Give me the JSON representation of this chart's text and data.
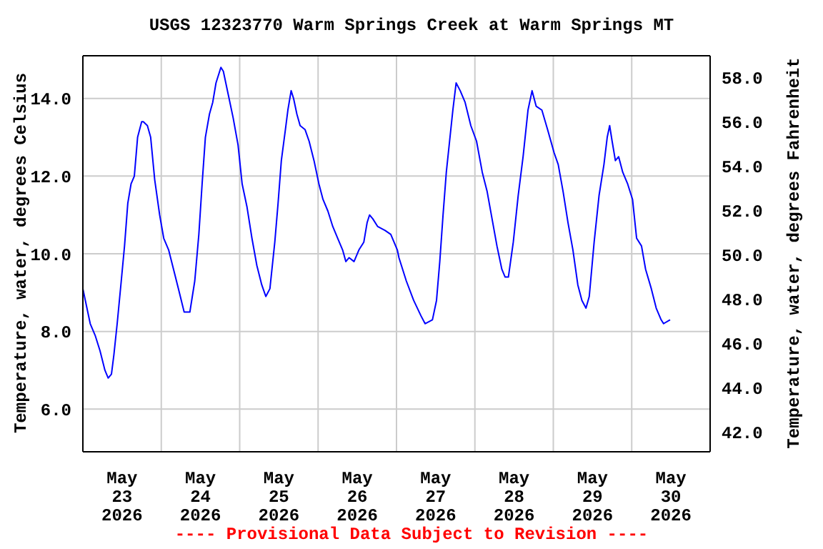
{
  "chart_data": {
    "type": "line",
    "title": "USGS 12323770 Warm Springs Creek at Warm Springs MT",
    "ylabel": "Temperature, water, degrees Celsius",
    "y2label": "Temperature, water, degrees Fahrenheit",
    "annotations": [
      "---- Provisional Data Subject to Revision ----"
    ],
    "x": [
      "2026-05-23T00:00",
      "2026-05-23T00:45",
      "2026-05-23T02:15",
      "2026-05-23T03:45",
      "2026-05-23T05:15",
      "2026-05-23T06:45",
      "2026-05-23T07:45",
      "2026-05-23T08:45",
      "2026-05-23T09:30",
      "2026-05-23T10:30",
      "2026-05-23T11:45",
      "2026-05-23T12:45",
      "2026-05-23T13:45",
      "2026-05-23T14:45",
      "2026-05-23T15:45",
      "2026-05-23T16:45",
      "2026-05-23T18:00",
      "2026-05-23T18:30",
      "2026-05-23T19:45",
      "2026-05-23T20:45",
      "2026-05-23T22:00",
      "2026-05-23T23:30",
      "2026-05-24T00:45",
      "2026-05-24T02:15",
      "2026-05-24T03:45",
      "2026-05-24T05:15",
      "2026-05-24T07:00",
      "2026-05-24T08:45",
      "2026-05-24T10:15",
      "2026-05-24T11:30",
      "2026-05-24T12:30",
      "2026-05-24T13:30",
      "2026-05-24T14:45",
      "2026-05-24T15:45",
      "2026-05-24T16:45",
      "2026-05-24T18:15",
      "2026-05-24T19:00",
      "2026-05-24T20:30",
      "2026-05-24T22:00",
      "2026-05-24T23:30",
      "2026-05-25T00:45",
      "2026-05-25T02:15",
      "2026-05-25T03:45",
      "2026-05-25T05:15",
      "2026-05-25T06:45",
      "2026-05-25T08:00",
      "2026-05-25T09:15",
      "2026-05-25T10:45",
      "2026-05-25T11:45",
      "2026-05-25T12:45",
      "2026-05-25T14:00",
      "2026-05-25T14:45",
      "2026-05-25T15:45",
      "2026-05-25T16:30",
      "2026-05-25T17:30",
      "2026-05-25T18:30",
      "2026-05-25T20:00",
      "2026-05-25T21:15",
      "2026-05-25T22:45",
      "2026-05-26T00:15",
      "2026-05-26T01:30",
      "2026-05-26T03:00",
      "2026-05-26T04:30",
      "2026-05-26T06:00",
      "2026-05-26T07:30",
      "2026-05-26T08:30",
      "2026-05-26T09:30",
      "2026-05-26T11:00",
      "2026-05-26T12:30",
      "2026-05-26T14:00",
      "2026-05-26T15:00",
      "2026-05-26T15:45",
      "2026-05-26T16:45",
      "2026-05-26T18:15",
      "2026-05-26T20:30",
      "2026-05-26T22:15",
      "2026-05-27T00:15",
      "2026-05-27T00:45",
      "2026-05-27T03:00",
      "2026-05-27T05:15",
      "2026-05-27T07:30",
      "2026-05-27T08:45",
      "2026-05-27T11:00",
      "2026-05-27T12:15",
      "2026-05-27T13:15",
      "2026-05-27T14:15",
      "2026-05-27T15:15",
      "2026-05-27T16:15",
      "2026-05-27T17:15",
      "2026-05-27T18:15",
      "2026-05-27T19:30",
      "2026-05-27T21:00",
      "2026-05-27T22:45",
      "2026-05-28T00:30",
      "2026-05-28T02:15",
      "2026-05-28T03:45",
      "2026-05-28T05:15",
      "2026-05-28T06:45",
      "2026-05-28T08:15",
      "2026-05-28T09:15",
      "2026-05-28T10:15",
      "2026-05-28T11:45",
      "2026-05-28T13:15",
      "2026-05-28T14:45",
      "2026-05-28T16:15",
      "2026-05-28T17:30",
      "2026-05-28T18:45",
      "2026-05-28T20:30",
      "2026-05-28T22:15",
      "2026-05-29T00:15",
      "2026-05-29T01:30",
      "2026-05-29T03:00",
      "2026-05-29T04:30",
      "2026-05-29T06:00",
      "2026-05-29T07:30",
      "2026-05-29T08:45",
      "2026-05-29T10:00",
      "2026-05-29T11:00",
      "2026-05-29T12:30",
      "2026-05-29T14:00",
      "2026-05-29T15:30",
      "2026-05-29T16:30",
      "2026-05-29T17:15",
      "2026-05-29T18:00",
      "2026-05-29T19:00",
      "2026-05-29T20:00",
      "2026-05-29T21:15",
      "2026-05-29T22:45",
      "2026-05-30T00:15",
      "2026-05-30T01:30",
      "2026-05-30T03:00",
      "2026-05-30T04:15",
      "2026-05-30T06:00",
      "2026-05-30T07:30",
      "2026-05-30T09:00",
      "2026-05-30T09:45",
      "2026-05-30T11:45"
    ],
    "series": [
      {
        "color": "#0000ff",
        "values": [
          9.1,
          8.8,
          8.2,
          7.9,
          7.5,
          7.0,
          6.8,
          6.9,
          7.4,
          8.2,
          9.3,
          10.2,
          11.3,
          11.8,
          12.0,
          13.0,
          13.4,
          13.4,
          13.3,
          13.0,
          11.9,
          11.0,
          10.4,
          10.1,
          9.6,
          9.1,
          8.5,
          8.5,
          9.3,
          10.5,
          11.8,
          13.0,
          13.6,
          13.9,
          14.4,
          14.8,
          14.7,
          14.1,
          13.5,
          12.8,
          11.8,
          11.2,
          10.4,
          9.7,
          9.2,
          8.9,
          9.1,
          10.3,
          11.3,
          12.4,
          13.2,
          13.7,
          14.2,
          14.0,
          13.6,
          13.3,
          13.2,
          12.9,
          12.4,
          11.8,
          11.4,
          11.1,
          10.7,
          10.4,
          10.1,
          9.8,
          9.9,
          9.8,
          10.1,
          10.3,
          10.8,
          11.0,
          10.9,
          10.7,
          10.6,
          10.5,
          10.1,
          9.9,
          9.3,
          8.8,
          8.4,
          8.2,
          8.3,
          8.8,
          9.8,
          11.0,
          12.1,
          12.9,
          13.7,
          14.4,
          14.2,
          13.9,
          13.3,
          12.9,
          12.1,
          11.6,
          10.9,
          10.2,
          9.6,
          9.4,
          9.4,
          10.3,
          11.5,
          12.5,
          13.7,
          14.2,
          13.8,
          13.7,
          13.2,
          12.6,
          12.3,
          11.6,
          10.8,
          10.1,
          9.2,
          8.8,
          8.6,
          8.9,
          10.3,
          11.5,
          12.3,
          13.0,
          13.3,
          12.9,
          12.4,
          12.5,
          12.1,
          11.8,
          11.4,
          10.4,
          10.2,
          9.6,
          9.1,
          8.6,
          8.3,
          8.2,
          8.3
        ]
      }
    ],
    "xlim": [
      "2026-05-23T00:00",
      "2026-05-31T00:00"
    ],
    "xticks": [
      {
        "value": "2026-05-23T12:00",
        "label": "May\n23\n2026"
      },
      {
        "value": "2026-05-24T00:00",
        "label": null
      },
      {
        "value": "2026-05-24T12:00",
        "label": "May\n24\n2026"
      },
      {
        "value": "2026-05-25T00:00",
        "label": null
      },
      {
        "value": "2026-05-25T12:00",
        "label": "May\n25\n2026"
      },
      {
        "value": "2026-05-26T00:00",
        "label": null
      },
      {
        "value": "2026-05-26T12:00",
        "label": "May\n26\n2026"
      },
      {
        "value": "2026-05-27T00:00",
        "label": null
      },
      {
        "value": "2026-05-27T12:00",
        "label": "May\n27\n2026"
      },
      {
        "value": "2026-05-28T00:00",
        "label": null
      },
      {
        "value": "2026-05-28T12:00",
        "label": "May\n28\n2026"
      },
      {
        "value": "2026-05-29T00:00",
        "label": null
      },
      {
        "value": "2026-05-29T12:00",
        "label": "May\n29\n2026"
      },
      {
        "value": "2026-05-30T00:00",
        "label": null
      },
      {
        "value": "2026-05-30T12:00",
        "label": "May\n30\n2026"
      }
    ],
    "ylim": [
      4.9,
      15.1
    ],
    "yticks": [
      {
        "value": 6,
        "label": "6.0"
      },
      {
        "value": 8,
        "label": "8.0"
      },
      {
        "value": 10,
        "label": "10.0"
      },
      {
        "value": 12,
        "label": "12.0"
      },
      {
        "value": 14,
        "label": "14.0"
      }
    ],
    "y2lim": [
      41.1,
      59.0
    ],
    "y2ticks": [
      {
        "value": 42,
        "label": "42.0"
      },
      {
        "value": 44,
        "label": "44.0"
      },
      {
        "value": 46,
        "label": "46.0"
      },
      {
        "value": 48,
        "label": "48.0"
      },
      {
        "value": 50,
        "label": "50.0"
      },
      {
        "value": 52,
        "label": "52.0"
      },
      {
        "value": 54,
        "label": "54.0"
      },
      {
        "value": 56,
        "label": "56.0"
      },
      {
        "value": 58,
        "label": "58.0"
      }
    ],
    "grid": true,
    "marker": "none"
  }
}
